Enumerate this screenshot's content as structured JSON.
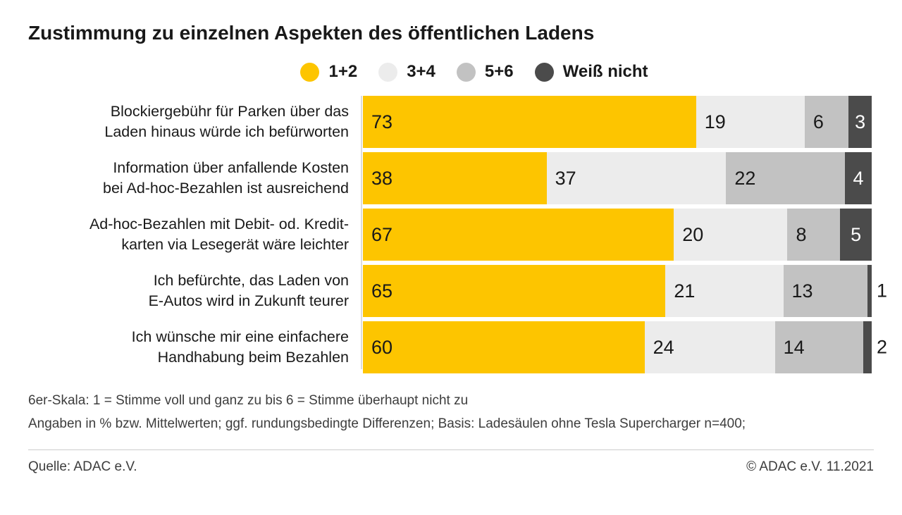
{
  "title": "Zustimmung zu einzelnen Aspekten des öffentlichen Ladens",
  "legend": {
    "items": [
      {
        "label": "1+2",
        "color": "#fdc500"
      },
      {
        "label": "3+4",
        "color": "#ececec"
      },
      {
        "label": "5+6",
        "color": "#c2c2c2"
      },
      {
        "label": "Weiß nicht",
        "color": "#4b4b4b"
      }
    ]
  },
  "chart_data": {
    "type": "bar",
    "orientation": "horizontal_stacked",
    "unit": "percent",
    "xlim": [
      0,
      100
    ],
    "value_labels": true,
    "title": "Zustimmung zu einzelnen Aspekten des öffentlichen Ladens",
    "categories": [
      [
        "Blockiergebühr für Parken über das",
        "Laden hinaus würde ich befürworten"
      ],
      [
        "Information über anfallende Kosten",
        "bei Ad-hoc-Bezahlen ist ausreichend"
      ],
      [
        "Ad-hoc-Bezahlen mit Debit- od. Kredit-",
        "karten via Lesegerät wäre leichter"
      ],
      [
        "Ich befürchte, das Laden von",
        "E-Autos wird in Zukunft teurer"
      ],
      [
        "Ich wünsche mir eine einfachere",
        "Handhabung beim Bezahlen"
      ]
    ],
    "series": [
      {
        "name": "1+2",
        "color": "#fdc500",
        "values": [
          73,
          38,
          67,
          65,
          60
        ]
      },
      {
        "name": "3+4",
        "color": "#ececec",
        "values": [
          19,
          37,
          20,
          21,
          24
        ]
      },
      {
        "name": "5+6",
        "color": "#c2c2c2",
        "values": [
          6,
          22,
          8,
          13,
          14
        ]
      },
      {
        "name": "Weiß nicht",
        "color": "#4b4b4b",
        "values": [
          3,
          4,
          5,
          1,
          2
        ]
      }
    ]
  },
  "footnotes": [
    "6er-Skala: 1 = Stimme voll und ganz zu bis 6 = Stimme überhaupt nicht zu",
    "Angaben in % bzw. Mittelwerten; ggf. rundungsbedingte Differenzen; Basis: Ladesäulen ohne Tesla Supercharger n=400;"
  ],
  "footer": {
    "source": "Quelle: ADAC e.V.",
    "copyright": "© ADAC e.V. 11.2021"
  }
}
